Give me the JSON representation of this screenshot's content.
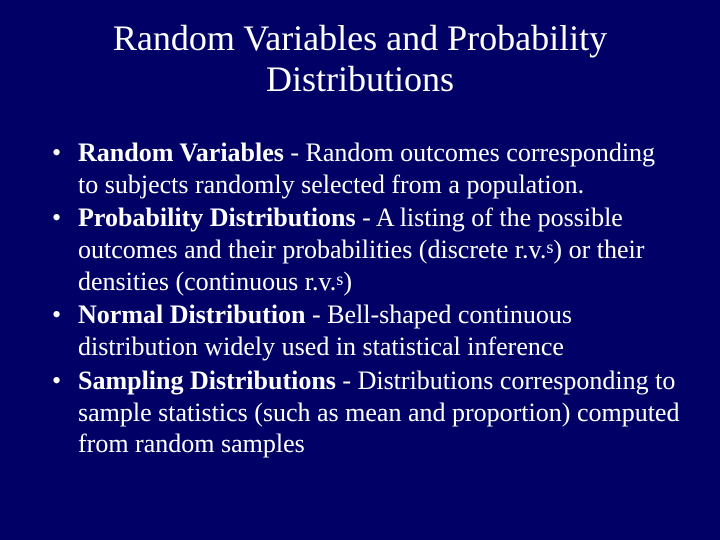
{
  "background_color": "#000066",
  "text_color": "#ffffff",
  "font_family": "Times New Roman",
  "title": "Random Variables and Probability Distributions",
  "title_fontsize": 36,
  "body_fontsize": 26,
  "bullets": [
    {
      "term": "Random Variables",
      "desc": " - Random outcomes corresponding to subjects randomly selected from a population."
    },
    {
      "term": "Probability Distributions",
      "desc_part1": " - A listing of the possible outcomes and their probabilities (discrete r.v.",
      "sup1": "s",
      "desc_part2": ") or their densities (continuous r.v.",
      "sup2": "s",
      "desc_part3": ")"
    },
    {
      "term": "Normal Distribution",
      "desc": " - Bell-shaped continuous distribution widely used in statistical inference"
    },
    {
      "term": "Sampling Distributions",
      "desc": " - Distributions corresponding to sample statistics (such as mean and proportion) computed from random samples"
    }
  ]
}
